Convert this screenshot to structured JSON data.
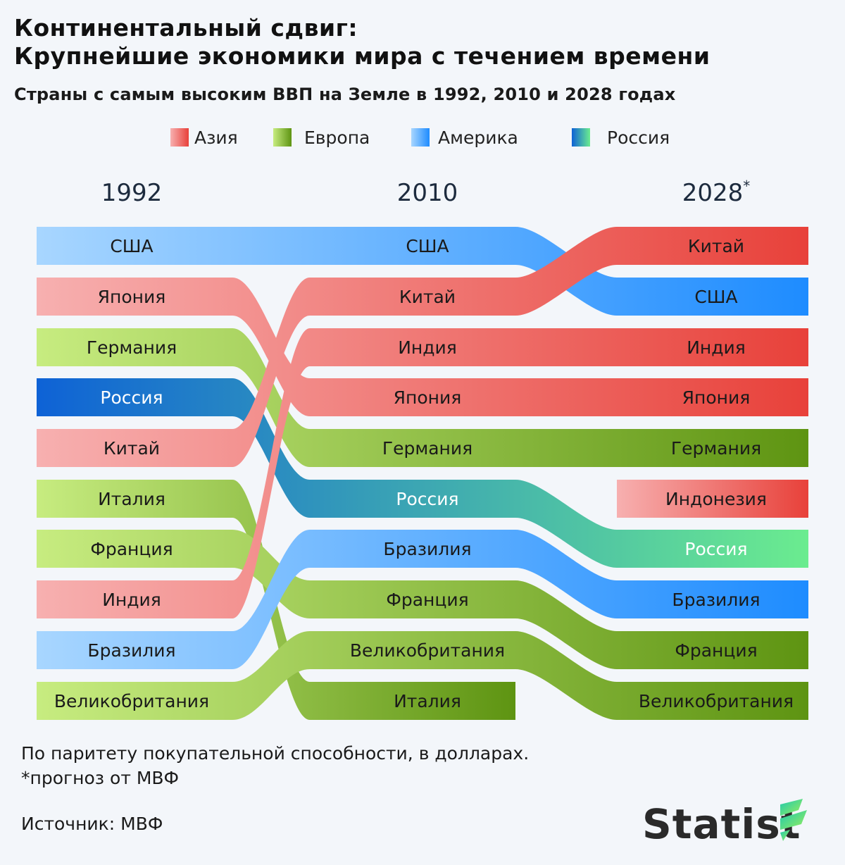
{
  "header": {
    "title_line1": "Континентальный сдвиг:",
    "title_line2": "Крупнейшие экономики мира с течением времени",
    "subtitle": "Страны с самым высоким ВВП на Земле в 1992, 2010 и 2028 годах"
  },
  "legend": [
    {
      "label": "Азия",
      "color_from": "#f7b0b0",
      "color_to": "#e8413a"
    },
    {
      "label": "Европа",
      "color_from": "#c7ec80",
      "color_to": "#5e9412"
    },
    {
      "label": "Америка",
      "color_from": "#a8d6ff",
      "color_to": "#1e8cff"
    },
    {
      "label": "Россия",
      "color_from": "#0e62d6",
      "color_to": "#6bec8f"
    }
  ],
  "chart_data": {
    "type": "table",
    "years": [
      "1992",
      "2010",
      "2028"
    ],
    "year_asterisk": [
      false,
      false,
      true
    ],
    "rankings": {
      "1992": [
        "США",
        "Япония",
        "Германия",
        "Россия",
        "Китай",
        "Италия",
        "Франция",
        "Индия",
        "Бразилия",
        "Великобритания"
      ],
      "2010": [
        "США",
        "Китай",
        "Индия",
        "Япония",
        "Германия",
        "Россия",
        "Бразилия",
        "Франция",
        "Великобритания",
        "Италия"
      ],
      "2028": [
        "Китай",
        "США",
        "Индия",
        "Япония",
        "Германия",
        "Индонезия",
        "Россия",
        "Бразилия",
        "Франция",
        "Великобритания"
      ]
    },
    "regions": {
      "США": "Америка",
      "Бразилия": "Америка",
      "Япония": "Азия",
      "Китай": "Азия",
      "Индия": "Азия",
      "Индонезия": "Азия",
      "Германия": "Европа",
      "Италия": "Европа",
      "Франция": "Европа",
      "Великобритания": "Европа",
      "Россия": "Россия"
    }
  },
  "footer": {
    "note1": "По паритету покупательной способности, в долларах.",
    "note2": "*прогноз от МВФ",
    "source": "Источник: МВФ",
    "logo": "Statist"
  }
}
